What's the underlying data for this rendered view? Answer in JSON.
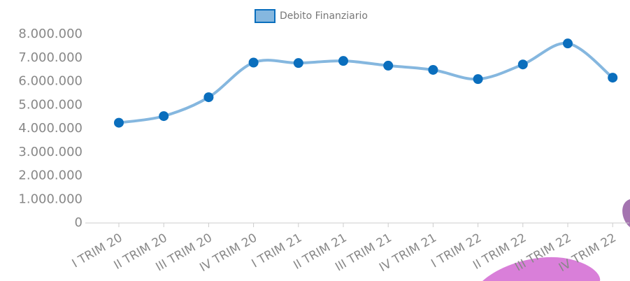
{
  "chart_data": {
    "type": "line",
    "categories": [
      "I TRIM 20",
      "II TRIM 20",
      "III TRIM 20",
      "IV TRIM 20",
      "I TRIM 21",
      "II TRIM 21",
      "III TRIM 21",
      "IV TRIM 21",
      "I TRIM 22",
      "II TRIM 22",
      "III TRIM 22",
      "IV TRIM 22"
    ],
    "series": [
      {
        "name": "Debito Finanziario",
        "color": "#0a6ebd",
        "line_color": "#85b7df",
        "values": [
          4250000,
          4530000,
          5330000,
          6800000,
          6780000,
          6870000,
          6670000,
          6490000,
          6100000,
          6720000,
          7610000,
          6160000
        ]
      }
    ],
    "ylim": [
      0,
      8000000
    ],
    "yticks": [
      0,
      {
        "value": 1000000,
        "label": "1.000.000"
      },
      {
        "value": 2000000,
        "label": "2.000.000"
      },
      {
        "value": 3000000,
        "label": "3.000.000"
      },
      {
        "value": 4000000,
        "label": "4.000.000"
      },
      {
        "value": 5000000,
        "label": "5.000.000"
      },
      {
        "value": 6000000,
        "label": "6.000.000"
      },
      {
        "value": 7000000,
        "label": "7.000.000"
      },
      {
        "value": 8000000,
        "label": "8.000.000"
      }
    ],
    "smooth": true,
    "legend": "top"
  }
}
